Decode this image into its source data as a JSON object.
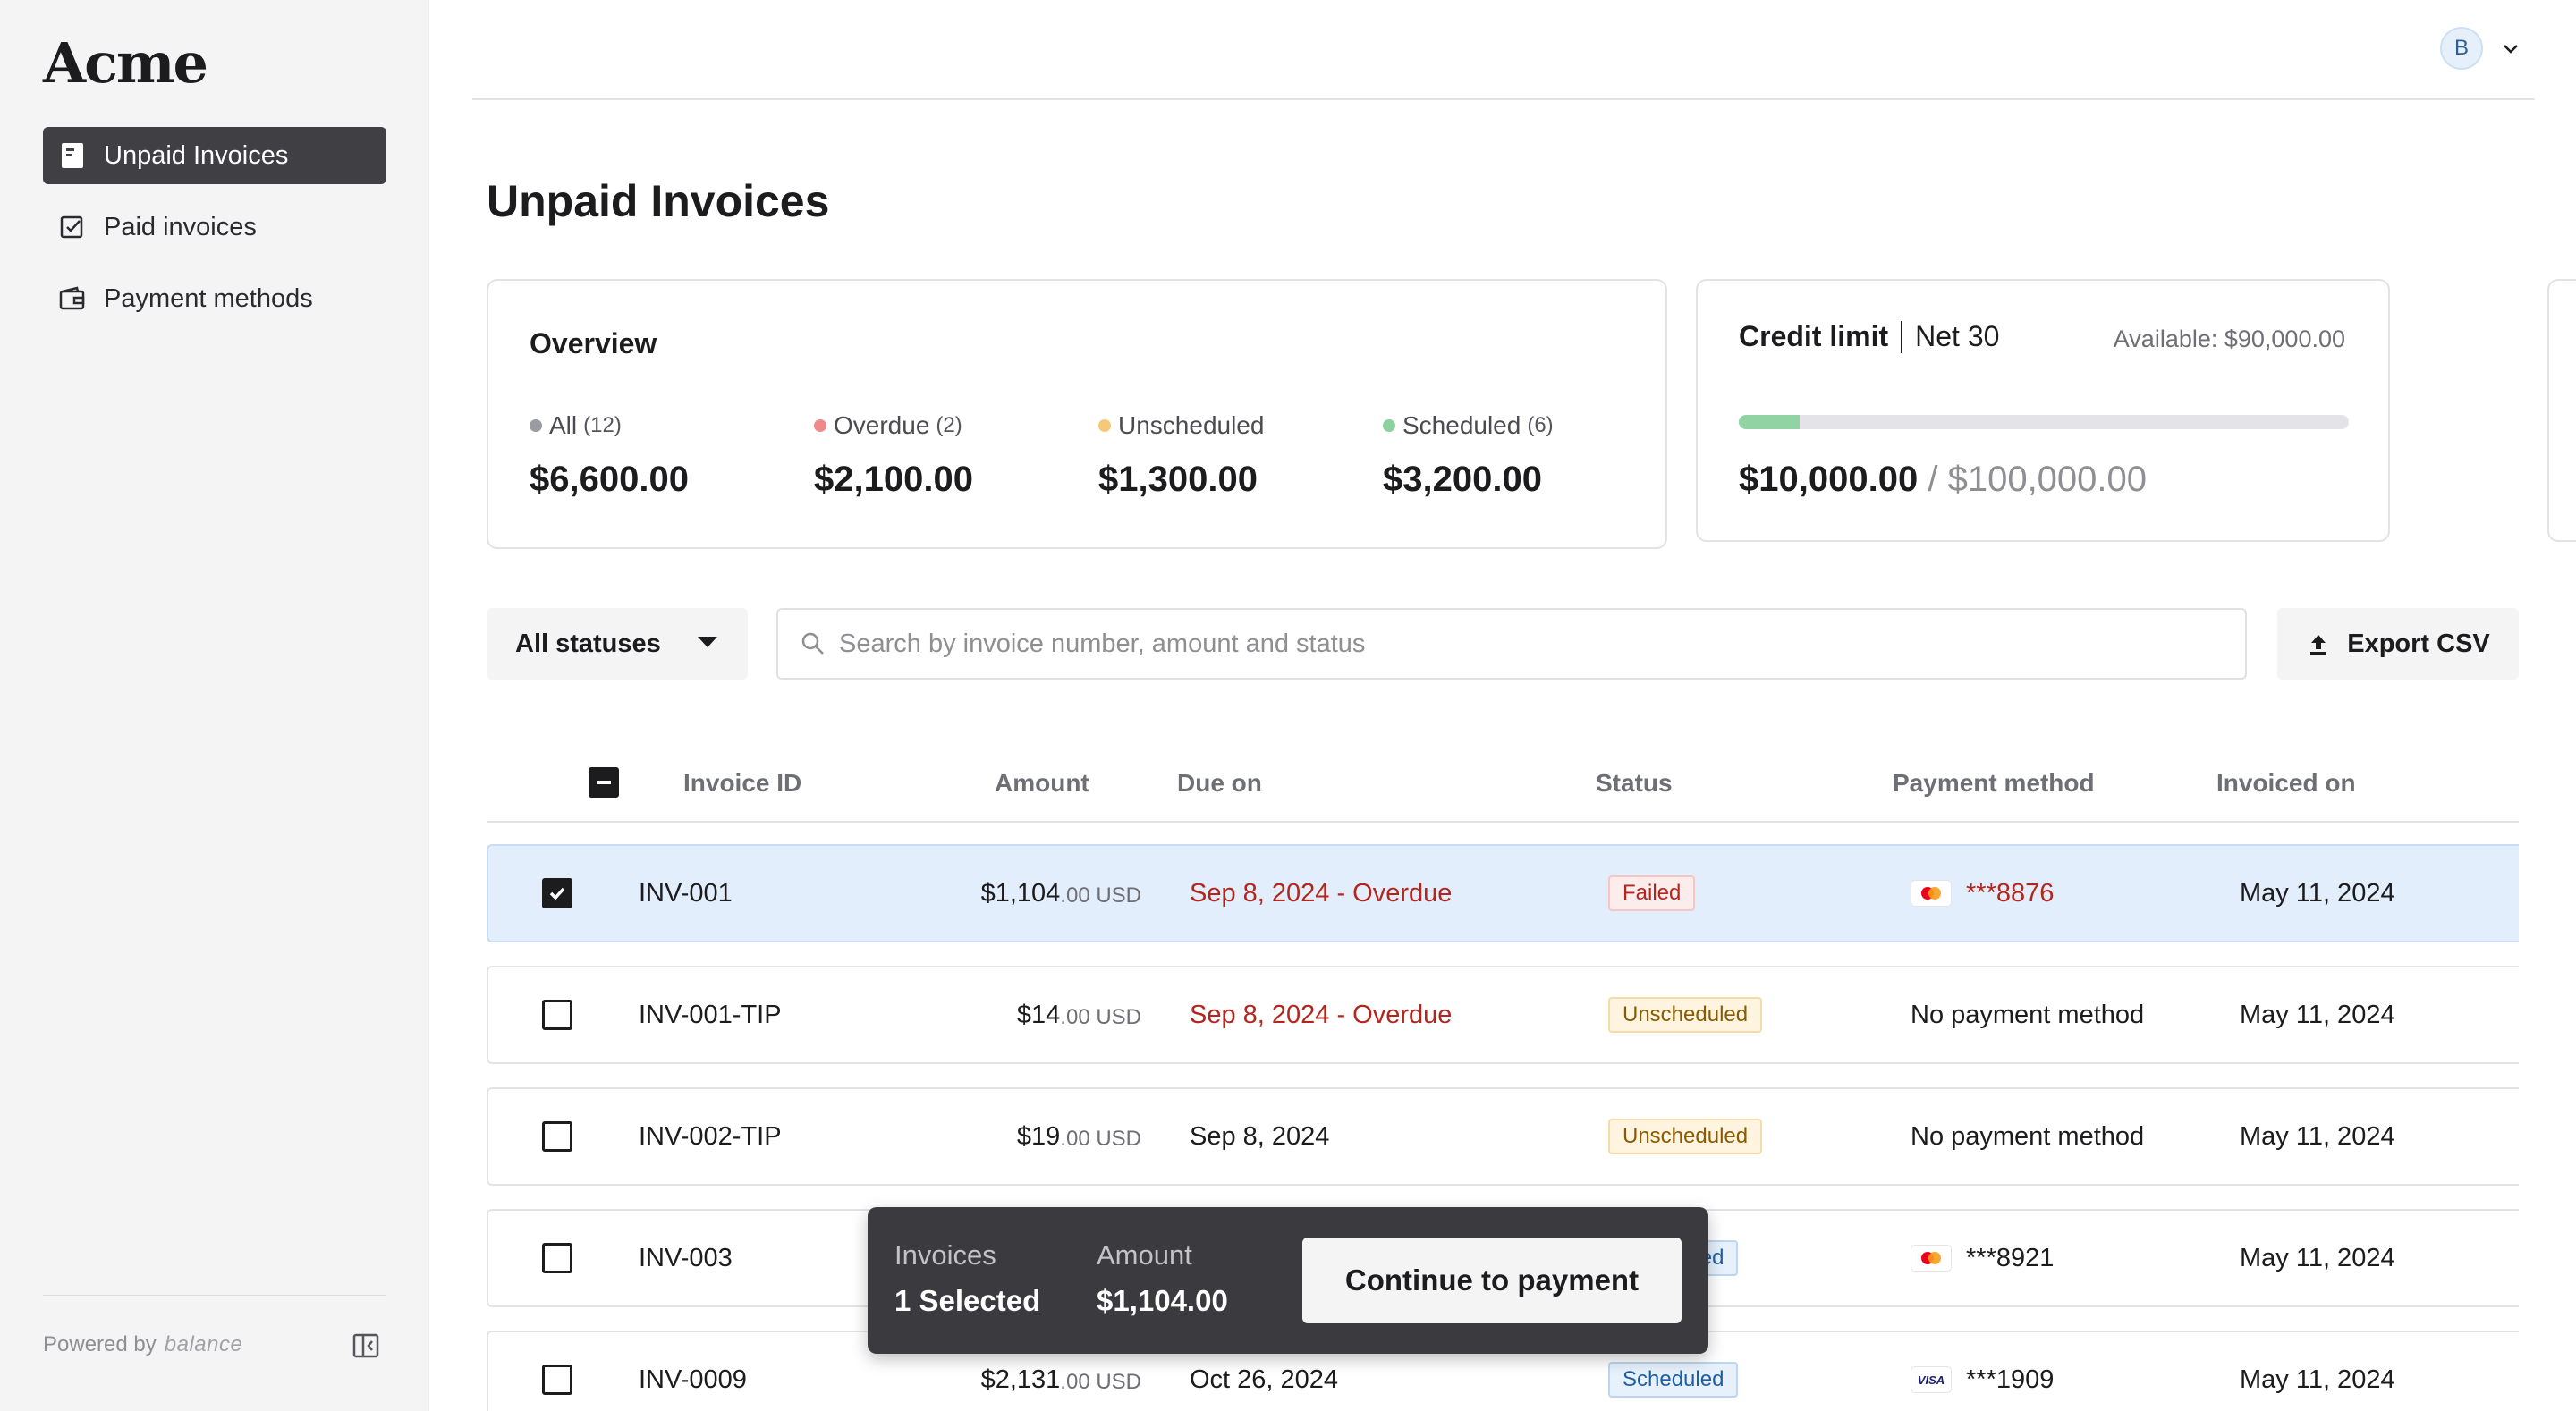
{
  "app": {
    "logo": "Acme",
    "powered_by": "Powered by",
    "powered_brand": "balance",
    "avatar_initial": "B"
  },
  "sidebar": {
    "items": [
      {
        "label": "Unpaid Invoices",
        "icon": "invoice-icon",
        "active": true
      },
      {
        "label": "Paid invoices",
        "icon": "checkbox-doc-icon",
        "active": false
      },
      {
        "label": "Payment methods",
        "icon": "wallet-icon",
        "active": false
      }
    ]
  },
  "page": {
    "title": "Unpaid Invoices"
  },
  "overview": {
    "title": "Overview",
    "stats": [
      {
        "label": "All",
        "count": "(12)",
        "value": "$6,600.00",
        "color": "#9a9aa3"
      },
      {
        "label": "Overdue",
        "count": "(2)",
        "value": "$2,100.00",
        "color": "#ee8a8a"
      },
      {
        "label": "Unscheduled",
        "count": "",
        "value": "$1,300.00",
        "color": "#f6c877"
      },
      {
        "label": "Scheduled",
        "count": "(6)",
        "value": "$3,200.00",
        "color": "#8fd19f"
      }
    ]
  },
  "credit": {
    "title": "Credit limit",
    "terms": "Net 30",
    "available": "Available: $90,000.00",
    "used": "$10,000.00",
    "separator": "/",
    "limit": "$100,000.00",
    "used_fraction": 0.1
  },
  "filters": {
    "status_label": "All statuses",
    "search_placeholder": "Search by invoice number, amount and status",
    "export_label": "Export CSV"
  },
  "table": {
    "headers": {
      "invoice_id": "Invoice ID",
      "amount": "Amount",
      "due_on": "Due on",
      "status": "Status",
      "payment_method": "Payment method",
      "invoiced_on": "Invoiced on"
    },
    "rows": [
      {
        "id": "INV-001",
        "amount_main": "$1,104",
        "amount_cents": ".00 USD",
        "due": "Sep 8, 2024 - Overdue",
        "overdue": true,
        "status": "Failed",
        "status_type": "failed",
        "pm_type": "mastercard",
        "pm_text": "***8876",
        "pm_red": true,
        "invoiced": "May 11, 2024",
        "selected": true
      },
      {
        "id": "INV-001-TIP",
        "amount_main": "$14",
        "amount_cents": ".00 USD",
        "due": "Sep 8, 2024 - Overdue",
        "overdue": true,
        "status": "Unscheduled",
        "status_type": "unsched",
        "pm_type": "none",
        "pm_text": "No payment method",
        "pm_red": false,
        "invoiced": "May 11, 2024",
        "selected": false
      },
      {
        "id": "INV-002-TIP",
        "amount_main": "$19",
        "amount_cents": ".00 USD",
        "due": "Sep 8, 2024",
        "overdue": false,
        "status": "Unscheduled",
        "status_type": "unsched",
        "pm_type": "none",
        "pm_text": "No payment method",
        "pm_red": false,
        "invoiced": "May 11, 2024",
        "selected": false
      },
      {
        "id": "INV-003",
        "amount_main": "",
        "amount_cents": "",
        "due": "",
        "overdue": false,
        "status": "Scheduled",
        "status_type": "sched",
        "pm_type": "mastercard",
        "pm_text": "***8921",
        "pm_red": false,
        "invoiced": "May 11, 2024",
        "selected": false
      },
      {
        "id": "INV-0009",
        "amount_main": "$2,131",
        "amount_cents": ".00 USD",
        "due": "Oct 26, 2024",
        "overdue": false,
        "status": "Scheduled",
        "status_type": "sched",
        "pm_type": "visa",
        "pm_text": "***1909",
        "pm_red": false,
        "invoiced": "May 11, 2024",
        "selected": false
      }
    ]
  },
  "selection_bar": {
    "invoices_label": "Invoices",
    "invoices_value": "1 Selected",
    "amount_label": "Amount",
    "amount_value": "$1,104.00",
    "continue_label": "Continue to payment"
  }
}
